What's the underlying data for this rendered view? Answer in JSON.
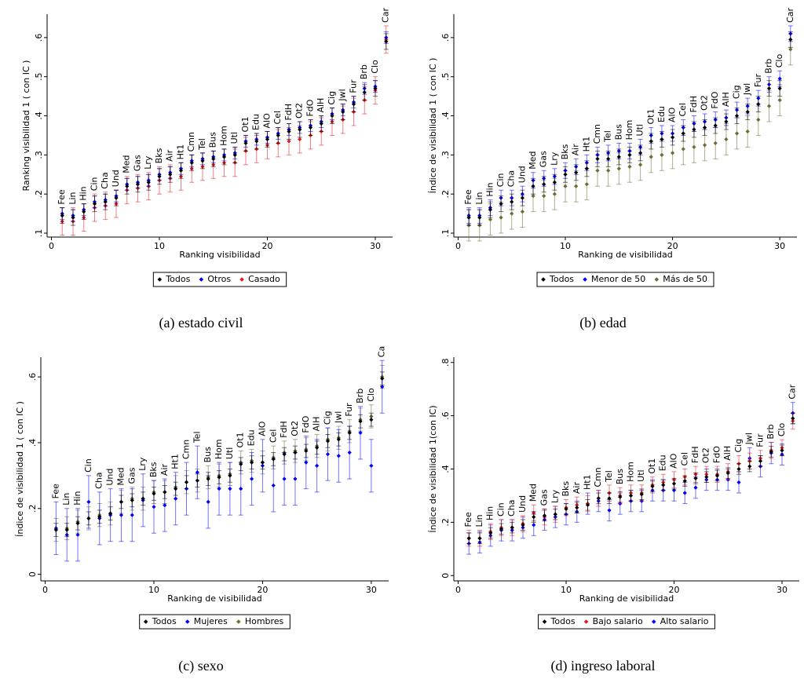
{
  "chart_data": [
    {
      "type": "scatter",
      "caption": "(a)  estado civil",
      "x_label": "Ranking visibilidad",
      "y_label": "Ranking visibilidad 1 ( con IC )",
      "x": [
        1,
        2,
        3,
        4,
        5,
        6,
        7,
        8,
        9,
        10,
        11,
        12,
        13,
        14,
        15,
        16,
        17,
        18,
        19,
        20,
        21,
        22,
        23,
        24,
        25,
        26,
        27,
        28,
        29,
        30,
        31
      ],
      "labels": [
        "Fee",
        "Lin",
        "Hin",
        "Cin",
        "Cha",
        "Und",
        "Med",
        "Gas",
        "Lry",
        "Bks",
        "Air",
        "Ht1",
        "Cmn",
        "Tel",
        "Bus",
        "Hom",
        "Utl",
        "Ot1",
        "Edu",
        "AlO",
        "Cel",
        "FdH",
        "Ot2",
        "FdO",
        "AlH",
        "Cig",
        "Jwl",
        "Fur",
        "Brb",
        "Clo",
        "Car"
      ],
      "xlim": [
        -0.4,
        31.6
      ],
      "xticks": [
        0,
        10,
        20,
        30
      ],
      "ylim": [
        0.09,
        0.66
      ],
      "yticks": [
        {
          "value": 0.1,
          "label": ".1"
        },
        {
          "value": 0.2,
          "label": ".2"
        },
        {
          "value": 0.3,
          "label": ".3"
        },
        {
          "value": 0.4,
          "label": ".4"
        },
        {
          "value": 0.5,
          "label": ".5"
        },
        {
          "value": 0.6,
          "label": ".6"
        }
      ],
      "series": [
        {
          "name": "Todos",
          "color": "#000000",
          "error": 0.02,
          "values": [
            0.145,
            0.14,
            0.155,
            0.175,
            0.18,
            0.19,
            0.22,
            0.225,
            0.23,
            0.245,
            0.25,
            0.26,
            0.28,
            0.285,
            0.29,
            0.295,
            0.3,
            0.33,
            0.335,
            0.34,
            0.35,
            0.36,
            0.365,
            0.37,
            0.38,
            0.4,
            0.41,
            0.43,
            0.46,
            0.47,
            0.59
          ]
        },
        {
          "name": "Otros",
          "color": "#0000ff",
          "error": 0.015,
          "values": [
            0.15,
            0.145,
            0.16,
            0.18,
            0.185,
            0.195,
            0.225,
            0.23,
            0.235,
            0.25,
            0.255,
            0.265,
            0.285,
            0.29,
            0.295,
            0.3,
            0.305,
            0.335,
            0.34,
            0.345,
            0.355,
            0.365,
            0.37,
            0.375,
            0.385,
            0.405,
            0.415,
            0.435,
            0.47,
            0.475,
            0.6
          ]
        },
        {
          "name": "Casado",
          "color": "#e31a1c",
          "error": 0.035,
          "values": [
            0.13,
            0.13,
            0.14,
            0.165,
            0.17,
            0.175,
            0.21,
            0.215,
            0.22,
            0.235,
            0.24,
            0.245,
            0.265,
            0.27,
            0.275,
            0.28,
            0.28,
            0.31,
            0.315,
            0.325,
            0.33,
            0.335,
            0.34,
            0.35,
            0.36,
            0.385,
            0.39,
            0.41,
            0.44,
            0.465,
            0.595
          ]
        }
      ]
    },
    {
      "type": "scatter",
      "caption": "(b)  edad",
      "x_label": "Ranking de visibilidad",
      "y_label": "Índice de visibilidad 1 ( con IC )",
      "x": [
        1,
        2,
        3,
        4,
        5,
        6,
        7,
        8,
        9,
        10,
        11,
        12,
        13,
        14,
        15,
        16,
        17,
        18,
        19,
        20,
        21,
        22,
        23,
        24,
        25,
        26,
        27,
        28,
        29,
        30,
        31
      ],
      "labels": [
        "Fee",
        "Lin",
        "Hin",
        "Cin",
        "Cha",
        "Und",
        "Med",
        "Gas",
        "Lry",
        "Bks",
        "Air",
        "Ht1",
        "Cmn",
        "Tel",
        "Bus",
        "Hom",
        "Utl",
        "Ot1",
        "Edu",
        "AlO",
        "Cel",
        "FdH",
        "Ot2",
        "FdO",
        "AlH",
        "Cig",
        "Jwl",
        "Fur",
        "Brb",
        "Clo",
        "Car"
      ],
      "xlim": [
        -0.4,
        31.6
      ],
      "xticks": [
        0,
        10,
        20,
        30
      ],
      "ylim": [
        0.09,
        0.66
      ],
      "yticks": [
        {
          "value": 0.1,
          "label": ".1"
        },
        {
          "value": 0.2,
          "label": ".2"
        },
        {
          "value": 0.3,
          "label": ".3"
        },
        {
          "value": 0.4,
          "label": ".4"
        },
        {
          "value": 0.5,
          "label": ".5"
        },
        {
          "value": 0.6,
          "label": ".6"
        }
      ],
      "series": [
        {
          "name": "Todos",
          "color": "#000000",
          "error": 0.02,
          "values": [
            0.14,
            0.14,
            0.16,
            0.175,
            0.18,
            0.19,
            0.22,
            0.225,
            0.23,
            0.25,
            0.255,
            0.265,
            0.29,
            0.29,
            0.295,
            0.3,
            0.305,
            0.335,
            0.34,
            0.345,
            0.355,
            0.365,
            0.37,
            0.375,
            0.385,
            0.4,
            0.41,
            0.43,
            0.47,
            0.47,
            0.595
          ]
        },
        {
          "name": "Menor de 50",
          "color": "#0000ff",
          "error": 0.02,
          "values": [
            0.145,
            0.145,
            0.165,
            0.19,
            0.19,
            0.2,
            0.235,
            0.24,
            0.245,
            0.26,
            0.27,
            0.28,
            0.3,
            0.305,
            0.31,
            0.31,
            0.32,
            0.35,
            0.355,
            0.355,
            0.37,
            0.38,
            0.385,
            0.39,
            0.395,
            0.415,
            0.425,
            0.445,
            0.48,
            0.495,
            0.61
          ]
        },
        {
          "name": "Más de 50",
          "color": "#6e6b35",
          "error": 0.04,
          "values": [
            0.12,
            0.12,
            0.135,
            0.14,
            0.15,
            0.155,
            0.195,
            0.195,
            0.2,
            0.22,
            0.22,
            0.225,
            0.26,
            0.26,
            0.265,
            0.27,
            0.275,
            0.295,
            0.3,
            0.305,
            0.315,
            0.32,
            0.325,
            0.33,
            0.34,
            0.355,
            0.36,
            0.39,
            0.425,
            0.44,
            0.57
          ]
        }
      ]
    },
    {
      "type": "scatter",
      "caption": "(c)  sexo",
      "x_label": "Ranking de visibilidad",
      "y_label": "Índice de visibilidad 1 ( con IC )",
      "x": [
        1,
        2,
        3,
        4,
        5,
        6,
        7,
        8,
        9,
        10,
        11,
        12,
        13,
        14,
        15,
        16,
        17,
        18,
        19,
        20,
        21,
        22,
        23,
        24,
        25,
        26,
        27,
        28,
        29,
        30,
        31
      ],
      "labels": [
        "Fee",
        "Lin",
        "Hin",
        "Cin",
        "Cha",
        "Und",
        "Med",
        "Gas",
        "Lry",
        "Bks",
        "Air",
        "Ht1",
        "Cmn",
        "Tel",
        "Bus",
        "Hom",
        "Utl",
        "Ot1",
        "Edu",
        "AlO",
        "Cel",
        "FdH",
        "Ot2",
        "FdO",
        "AlH",
        "Cig",
        "Jwl",
        "Fur",
        "Brb",
        "Clo",
        "Ca"
      ],
      "xlim": [
        -0.4,
        31.6
      ],
      "xticks": [
        0,
        10,
        20,
        30
      ],
      "ylim": [
        -0.02,
        0.66
      ],
      "yticks": [
        0,
        {
          "value": 0.2,
          "label": ".2"
        },
        {
          "value": 0.4,
          "label": ".4"
        },
        {
          "value": 0.6,
          "label": ".6"
        }
      ],
      "series": [
        {
          "name": "Todos",
          "color": "#000000",
          "error": 0.02,
          "values": [
            0.135,
            0.135,
            0.155,
            0.17,
            0.175,
            0.185,
            0.22,
            0.225,
            0.23,
            0.245,
            0.25,
            0.26,
            0.28,
            0.285,
            0.29,
            0.295,
            0.3,
            0.335,
            0.34,
            0.34,
            0.35,
            0.365,
            0.37,
            0.375,
            0.385,
            0.405,
            0.41,
            0.43,
            0.465,
            0.47,
            0.595
          ]
        },
        {
          "name": "Mujeres",
          "color": "#0000ff",
          "error": 0.08,
          "values": [
            0.14,
            0.12,
            0.12,
            0.22,
            0.17,
            0.18,
            0.18,
            0.18,
            0.225,
            0.205,
            0.21,
            0.23,
            0.26,
            0.31,
            0.22,
            0.26,
            0.26,
            0.26,
            0.29,
            0.33,
            0.27,
            0.29,
            0.29,
            0.34,
            0.33,
            0.365,
            0.36,
            0.37,
            0.43,
            0.33,
            0.57
          ]
        },
        {
          "name": "Hombres",
          "color": "#6e6b35",
          "error": 0.035,
          "values": [
            0.135,
            0.14,
            0.16,
            0.17,
            0.18,
            0.185,
            0.22,
            0.23,
            0.23,
            0.25,
            0.25,
            0.265,
            0.28,
            0.285,
            0.295,
            0.3,
            0.305,
            0.34,
            0.345,
            0.34,
            0.355,
            0.37,
            0.375,
            0.38,
            0.39,
            0.41,
            0.415,
            0.435,
            0.47,
            0.48,
            0.6
          ]
        }
      ]
    },
    {
      "type": "scatter",
      "caption": "(d)  ingreso laboral",
      "x_label": "Ranking de visibilidad",
      "y_label": "Índice de visibilidad 1(con IC)",
      "x": [
        1,
        2,
        3,
        4,
        5,
        6,
        7,
        8,
        9,
        10,
        11,
        12,
        13,
        14,
        15,
        16,
        17,
        18,
        19,
        20,
        21,
        22,
        23,
        24,
        25,
        26,
        27,
        28,
        29,
        30,
        31
      ],
      "labels": [
        "Fee",
        "Lin",
        "Hin",
        "Cin",
        "Cha",
        "Und",
        "Med",
        "Gas",
        "Lry",
        "Bks",
        "Air",
        "Ht1",
        "Cmn",
        "Tel",
        "Bus",
        "Hom",
        "Utl",
        "Ot1",
        "Edu",
        "AlO",
        "Cel",
        "FdH",
        "Ot2",
        "FdO",
        "AlH",
        "Cig",
        "Jwl",
        "Fur",
        "Brb",
        "Clo",
        "Car"
      ],
      "xlim": [
        -0.4,
        31.6
      ],
      "xticks": [
        0,
        10,
        20,
        30
      ],
      "ylim": [
        -0.02,
        0.82
      ],
      "yticks": [
        0,
        {
          "value": 0.2,
          "label": ".2"
        },
        {
          "value": 0.4,
          "label": ".4"
        },
        {
          "value": 0.6,
          "label": ".6"
        },
        {
          "value": 0.8,
          "label": ".8"
        }
      ],
      "series": [
        {
          "name": "Todos",
          "color": "#000000",
          "error": 0.02,
          "values": [
            0.14,
            0.14,
            0.16,
            0.175,
            0.18,
            0.19,
            0.22,
            0.225,
            0.23,
            0.25,
            0.255,
            0.265,
            0.29,
            0.29,
            0.295,
            0.3,
            0.305,
            0.335,
            0.34,
            0.345,
            0.355,
            0.365,
            0.37,
            0.375,
            0.385,
            0.4,
            0.41,
            0.43,
            0.465,
            0.47,
            0.59
          ]
        },
        {
          "name": "Bajo salario",
          "color": "#e31a1c",
          "error": 0.03,
          "values": [
            0.14,
            0.14,
            0.165,
            0.18,
            0.18,
            0.195,
            0.235,
            0.22,
            0.23,
            0.255,
            0.265,
            0.27,
            0.29,
            0.31,
            0.3,
            0.31,
            0.31,
            0.34,
            0.35,
            0.36,
            0.37,
            0.38,
            0.38,
            0.38,
            0.39,
            0.42,
            0.43,
            0.44,
            0.47,
            0.48,
            0.58
          ]
        },
        {
          "name": "Alto salario",
          "color": "#0000ff",
          "error": 0.04,
          "values": [
            0.12,
            0.125,
            0.15,
            0.17,
            0.17,
            0.18,
            0.19,
            0.21,
            0.22,
            0.23,
            0.24,
            0.27,
            0.28,
            0.245,
            0.27,
            0.28,
            0.28,
            0.32,
            0.32,
            0.32,
            0.31,
            0.33,
            0.36,
            0.36,
            0.36,
            0.35,
            0.44,
            0.41,
            0.46,
            0.455,
            0.61
          ]
        }
      ]
    }
  ]
}
